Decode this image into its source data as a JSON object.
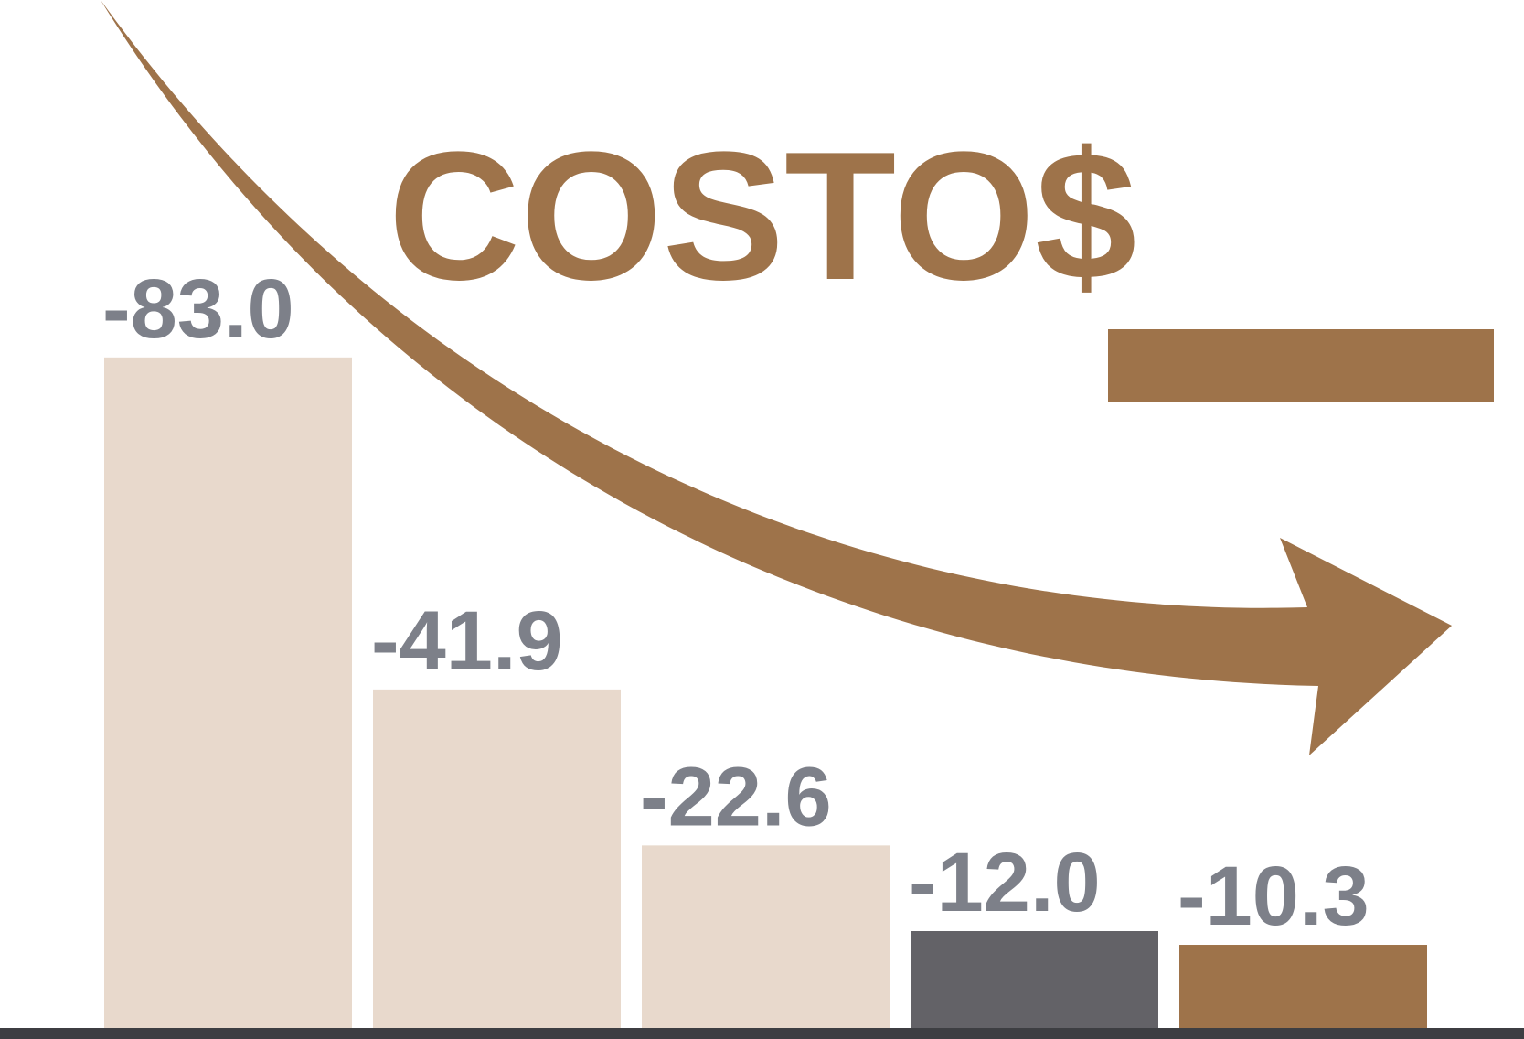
{
  "chart_data": {
    "type": "bar",
    "title": "COSTO$",
    "categories": [
      null,
      null,
      null,
      null,
      null
    ],
    "values": [
      -83.0,
      -41.9,
      -22.6,
      -12.0,
      -10.3
    ],
    "value_labels": [
      "-83.0",
      "-41.9",
      "-22.6",
      "-12.0",
      "-10.3"
    ],
    "colors": [
      "#e8d9cc",
      "#e8d9cc",
      "#e8d9cc",
      "#636267",
      "#9e734a"
    ],
    "ylim": [
      0,
      -90
    ]
  }
}
